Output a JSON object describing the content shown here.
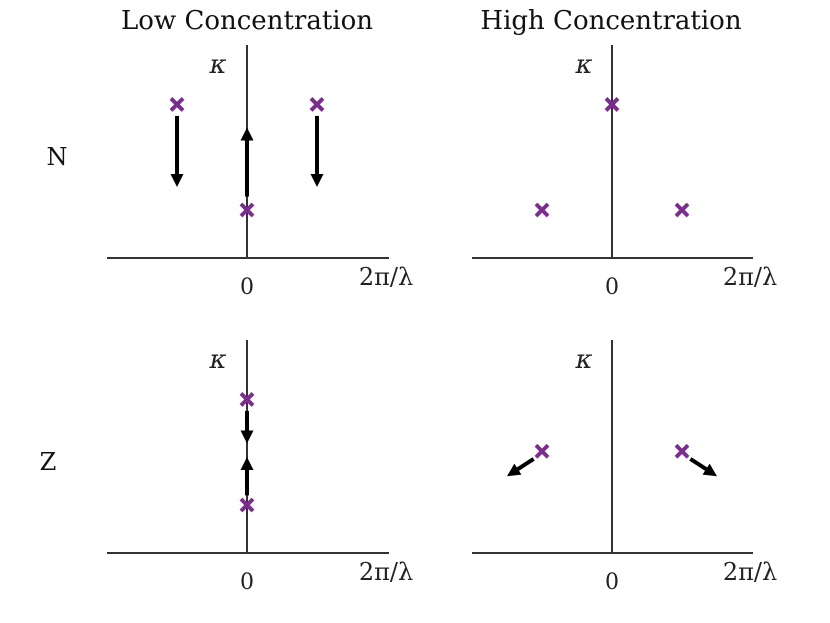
{
  "columns": [
    "Low Concentration",
    "High Concentration"
  ],
  "rows": [
    "N",
    "Z"
  ],
  "axes": {
    "ylabel": "κ",
    "xlabel": "2π/λ",
    "xtick": "0"
  },
  "colors": {
    "marker": "#7b2d8e",
    "arrow": "#000000",
    "axis": "#333333"
  },
  "panels": [
    {
      "name": "panel-n-low",
      "row": "N",
      "column": "Low Concentration",
      "markers": [
        {
          "x": -1,
          "y": 0.8
        },
        {
          "x": 0,
          "y": 0.25
        },
        {
          "x": 1,
          "y": 0.8
        }
      ],
      "arrows": [
        {
          "from": [
            -1,
            0.74
          ],
          "to": [
            -1,
            0.37
          ]
        },
        {
          "from": [
            0,
            0.32
          ],
          "to": [
            0,
            0.68
          ]
        },
        {
          "from": [
            1,
            0.74
          ],
          "to": [
            1,
            0.37
          ]
        }
      ]
    },
    {
      "name": "panel-n-high",
      "row": "N",
      "column": "High Concentration",
      "markers": [
        {
          "x": -1,
          "y": 0.25
        },
        {
          "x": 0,
          "y": 0.8
        },
        {
          "x": 1,
          "y": 0.25
        }
      ],
      "arrows": []
    },
    {
      "name": "panel-z-low",
      "row": "Z",
      "column": "Low Concentration",
      "markers": [
        {
          "x": 0,
          "y": 0.8
        },
        {
          "x": 0,
          "y": 0.25
        }
      ],
      "arrows": [
        {
          "from": [
            0,
            0.74
          ],
          "to": [
            0,
            0.57
          ]
        },
        {
          "from": [
            0,
            0.3
          ],
          "to": [
            0,
            0.5
          ]
        }
      ]
    },
    {
      "name": "panel-z-high",
      "row": "Z",
      "column": "High Concentration",
      "markers": [
        {
          "x": -1,
          "y": 0.53
        },
        {
          "x": 1,
          "y": 0.53
        }
      ],
      "arrows": [
        {
          "from": [
            -1.12,
            0.49
          ],
          "to": [
            -1.5,
            0.4
          ]
        },
        {
          "from": [
            1.12,
            0.49
          ],
          "to": [
            1.5,
            0.4
          ]
        }
      ]
    }
  ]
}
